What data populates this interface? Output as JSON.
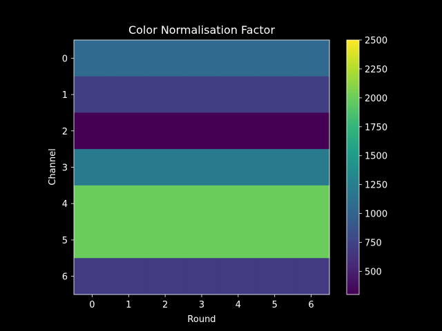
{
  "chart_data": {
    "type": "heatmap",
    "title": "Color Normalisation Factor",
    "xlabel": "Round",
    "ylabel": "Channel",
    "x_categories": [
      "0",
      "1",
      "2",
      "3",
      "4",
      "5",
      "6"
    ],
    "y_categories": [
      "0",
      "1",
      "2",
      "3",
      "4",
      "5",
      "6"
    ],
    "values": [
      [
        1050,
        1050,
        1050,
        1050,
        1050,
        1050,
        1050
      ],
      [
        700,
        700,
        700,
        700,
        700,
        700,
        700
      ],
      [
        300,
        300,
        300,
        300,
        300,
        300,
        300
      ],
      [
        1200,
        1200,
        1200,
        1200,
        1200,
        1200,
        1200
      ],
      [
        2000,
        2000,
        2000,
        2000,
        2000,
        2000,
        2000
      ],
      [
        2000,
        2000,
        2000,
        2000,
        2000,
        2000,
        2000
      ],
      [
        680,
        680,
        680,
        680,
        680,
        680,
        680
      ]
    ],
    "colorbar": {
      "range": [
        300,
        2500
      ],
      "ticks": [
        500,
        750,
        1000,
        1250,
        1500,
        1750,
        2000,
        2250,
        2500
      ],
      "tick_labels": [
        "500",
        "750",
        "1000",
        "1250",
        "1500",
        "1750",
        "2000",
        "2250",
        "2500"
      ],
      "colormap": "viridis"
    },
    "background_color": "#000000",
    "text_color": "#ffffff"
  }
}
